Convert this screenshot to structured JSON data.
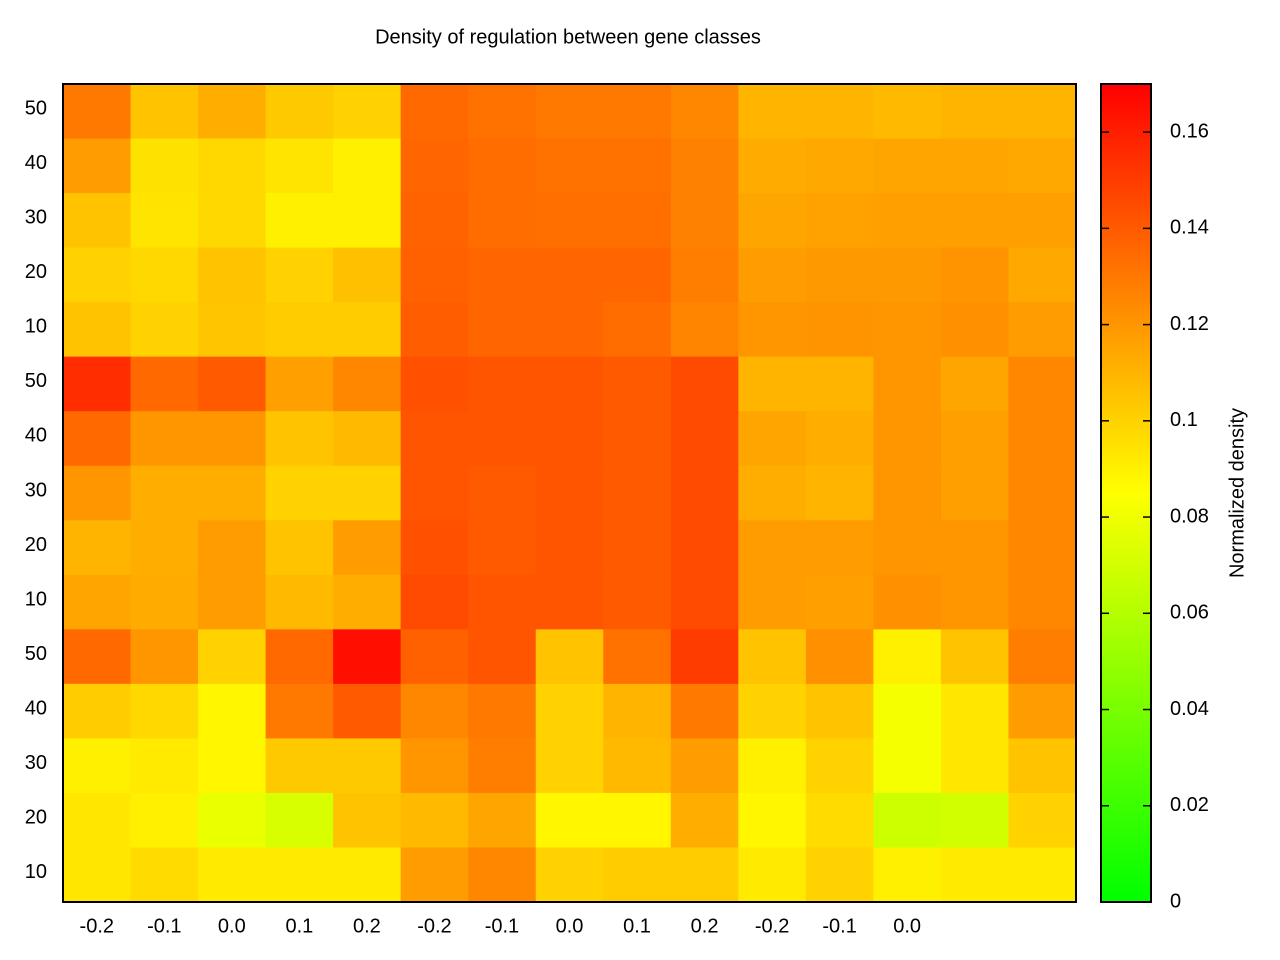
{
  "chart_data": {
    "type": "heatmap",
    "title": "Density of regulation between gene classes",
    "x": [
      "-0.2",
      "-0.1",
      "0.0",
      "0.1",
      "0.2",
      "-0.2",
      "-0.1",
      "0.0",
      "0.1",
      "0.2",
      "-0.2",
      "-0.1",
      "0.0",
      null,
      null
    ],
    "y": [
      50,
      40,
      30,
      20,
      10,
      50,
      40,
      30,
      20,
      10,
      50,
      40,
      30,
      20,
      10
    ],
    "values": [
      [
        0.13,
        0.105,
        0.112,
        0.103,
        0.1,
        0.135,
        0.132,
        0.13,
        0.13,
        0.125,
        0.11,
        0.11,
        0.108,
        0.11,
        0.11
      ],
      [
        0.118,
        0.095,
        0.098,
        0.094,
        0.09,
        0.136,
        0.134,
        0.132,
        0.132,
        0.127,
        0.113,
        0.114,
        0.115,
        0.115,
        0.114
      ],
      [
        0.105,
        0.094,
        0.098,
        0.09,
        0.09,
        0.137,
        0.134,
        0.133,
        0.133,
        0.127,
        0.115,
        0.116,
        0.117,
        0.117,
        0.117
      ],
      [
        0.1,
        0.098,
        0.105,
        0.1,
        0.106,
        0.138,
        0.136,
        0.136,
        0.136,
        0.128,
        0.118,
        0.119,
        0.119,
        0.121,
        0.114
      ],
      [
        0.105,
        0.1,
        0.104,
        0.102,
        0.102,
        0.139,
        0.136,
        0.136,
        0.134,
        0.126,
        0.12,
        0.121,
        0.12,
        0.122,
        0.118
      ],
      [
        0.155,
        0.135,
        0.14,
        0.117,
        0.125,
        0.143,
        0.142,
        0.142,
        0.14,
        0.145,
        0.11,
        0.11,
        0.12,
        0.115,
        0.125
      ],
      [
        0.135,
        0.12,
        0.12,
        0.105,
        0.108,
        0.142,
        0.142,
        0.142,
        0.14,
        0.145,
        0.115,
        0.112,
        0.12,
        0.117,
        0.125
      ],
      [
        0.12,
        0.112,
        0.112,
        0.1,
        0.1,
        0.142,
        0.14,
        0.142,
        0.14,
        0.145,
        0.112,
        0.11,
        0.12,
        0.117,
        0.125
      ],
      [
        0.11,
        0.112,
        0.118,
        0.105,
        0.118,
        0.143,
        0.14,
        0.142,
        0.14,
        0.145,
        0.118,
        0.118,
        0.12,
        0.12,
        0.125
      ],
      [
        0.115,
        0.113,
        0.118,
        0.108,
        0.112,
        0.145,
        0.142,
        0.142,
        0.14,
        0.145,
        0.118,
        0.117,
        0.122,
        0.12,
        0.125
      ],
      [
        0.135,
        0.12,
        0.1,
        0.135,
        0.165,
        0.138,
        0.142,
        0.105,
        0.132,
        0.15,
        0.105,
        0.122,
        0.09,
        0.105,
        0.128
      ],
      [
        0.102,
        0.098,
        0.088,
        0.13,
        0.14,
        0.125,
        0.13,
        0.1,
        0.11,
        0.13,
        0.1,
        0.105,
        0.082,
        0.093,
        0.118
      ],
      [
        0.09,
        0.092,
        0.088,
        0.103,
        0.103,
        0.12,
        0.128,
        0.1,
        0.108,
        0.118,
        0.09,
        0.1,
        0.082,
        0.093,
        0.105
      ],
      [
        0.093,
        0.09,
        0.078,
        0.072,
        0.105,
        0.108,
        0.115,
        0.088,
        0.088,
        0.112,
        0.088,
        0.097,
        0.068,
        0.07,
        0.1
      ],
      [
        0.093,
        0.097,
        0.092,
        0.092,
        0.092,
        0.118,
        0.125,
        0.1,
        0.102,
        0.102,
        0.092,
        0.1,
        0.09,
        0.092,
        0.092
      ]
    ],
    "colorscale": [
      "#00ff00",
      "#ffff00",
      "#ff0000"
    ],
    "colorbar": {
      "label": "Normalized density",
      "lim": [
        0,
        0.17
      ],
      "ticks": [
        0,
        0.02,
        0.04,
        0.06,
        0.08,
        0.1,
        0.12,
        0.14,
        0.16
      ]
    }
  }
}
